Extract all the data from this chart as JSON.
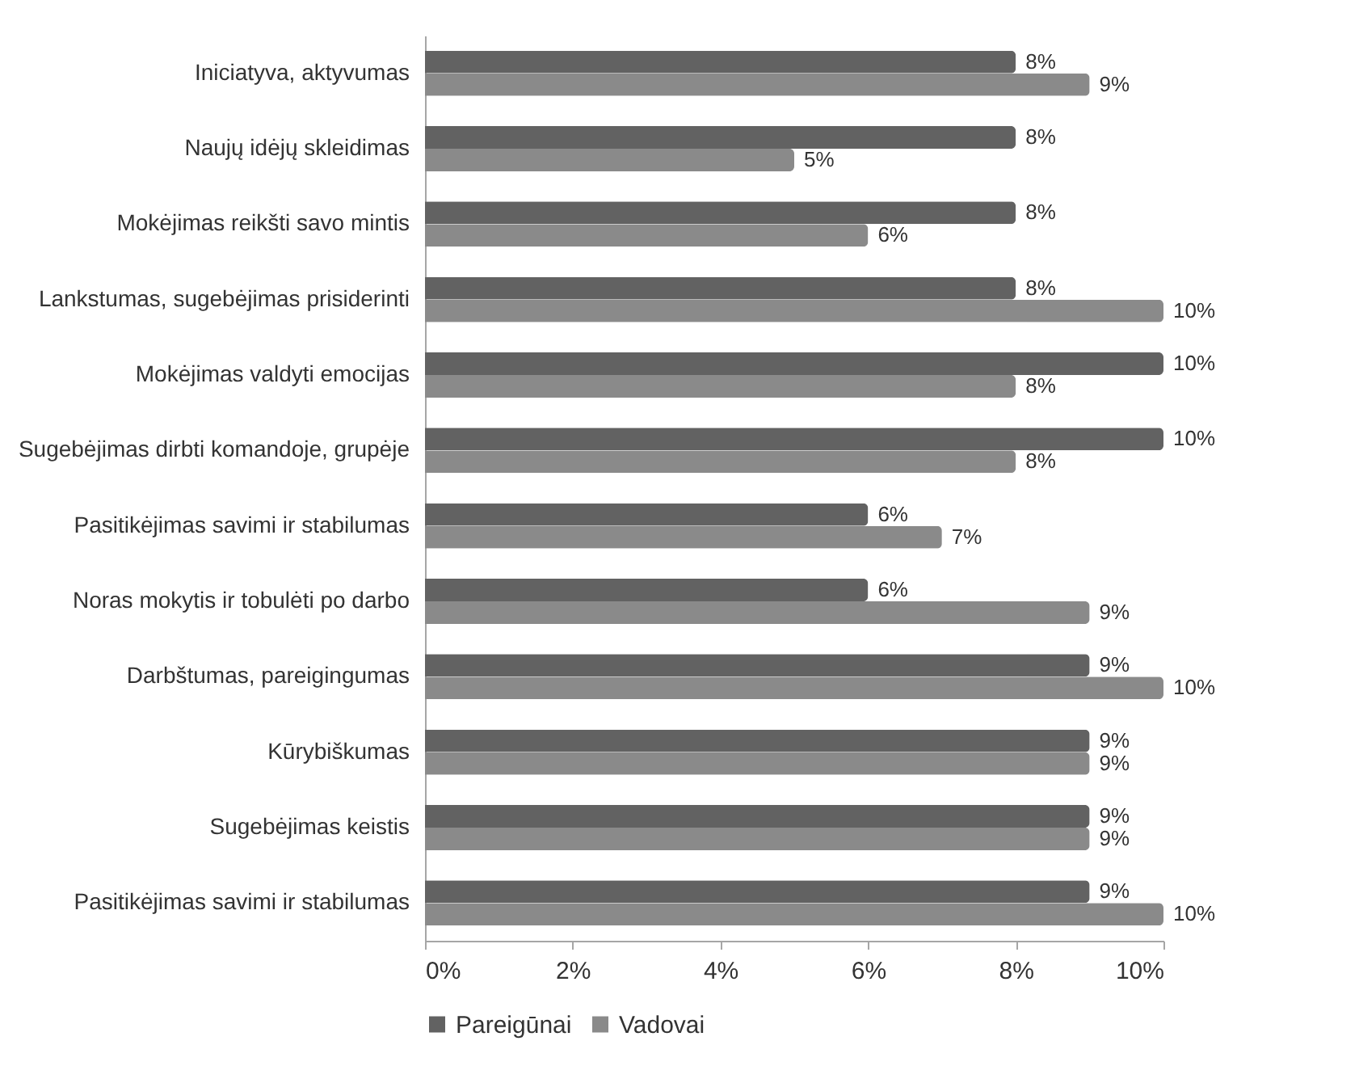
{
  "chart_data": {
    "type": "bar",
    "orientation": "horizontal",
    "categories": [
      "Iniciatyva, aktyvumas",
      "Naujų idėjų skleidimas",
      "Mokėjimas reikšti savo mintis",
      "Lankstumas, sugebėjimas prisiderinti",
      "Mokėjimas valdyti emocijas",
      "Sugebėjimas dirbti komandoje, grupėje",
      "Pasitikėjimas savimi ir stabilumas",
      "Noras mokytis ir tobulėti po darbo",
      "Darbštumas, pareigingumas",
      "Kūrybiškumas",
      "Sugebėjimas keistis",
      "Pasitikėjimas savimi ir stabilumas"
    ],
    "series": [
      {
        "name": "Pareigūnai",
        "color": "#626262",
        "values": [
          8,
          8,
          8,
          8,
          10,
          10,
          6,
          6,
          9,
          9,
          9,
          9
        ],
        "value_labels": [
          "8%",
          "8%",
          "8%",
          "8%",
          "10%",
          "10%",
          "6%",
          "6%",
          "9%",
          "9%",
          "9%",
          "9%"
        ]
      },
      {
        "name": "Vadovai",
        "color": "#8a8a8a",
        "values": [
          9,
          5,
          6,
          10,
          8,
          8,
          7,
          9,
          10,
          9,
          9,
          10
        ],
        "value_labels": [
          "9%",
          "5%",
          "6%",
          "10%",
          "8%",
          "8%",
          "7%",
          "9%",
          "10%",
          "9%",
          "9%",
          "10%"
        ]
      }
    ],
    "xlim": [
      0,
      10
    ],
    "xticks": [
      {
        "value": 0,
        "label": "0%"
      },
      {
        "value": 2,
        "label": "2%"
      },
      {
        "value": 4,
        "label": "4%"
      },
      {
        "value": 6,
        "label": "6%"
      },
      {
        "value": 8,
        "label": "8%"
      },
      {
        "value": 10,
        "label": "10%"
      }
    ],
    "grid": false,
    "legend": "bottom"
  }
}
